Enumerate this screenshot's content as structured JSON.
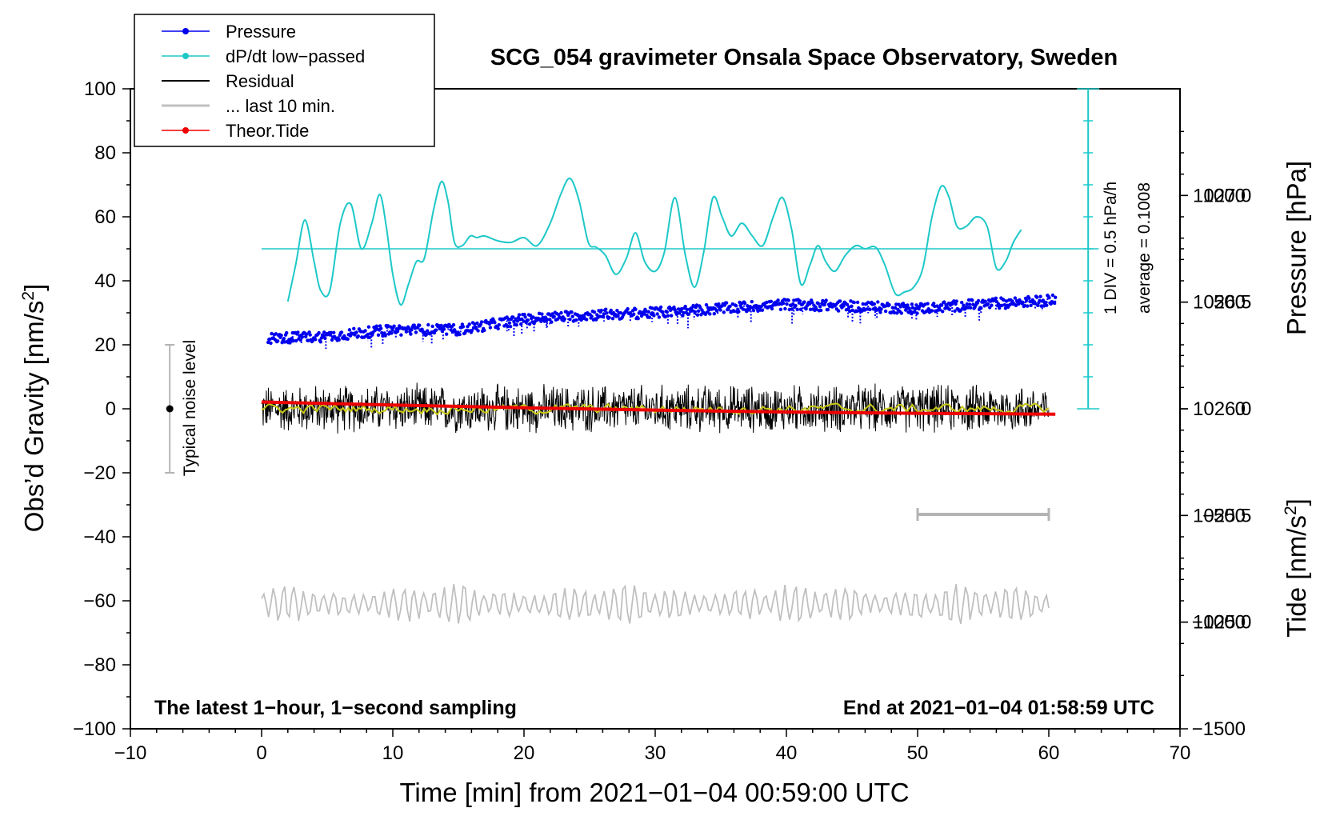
{
  "colors": {
    "pressure": "#0000ee",
    "dpdt": "#1ec8c8",
    "residual": "#000000",
    "last10": "#c0c0c0",
    "tide": "#ee0000",
    "smooth": "#c8c814",
    "noise": "#b4b4b4"
  },
  "chart_data": {
    "type": "line",
    "title": "SCG_054 gravimeter Onsala Space Observatory, Sweden",
    "xlabel": "Time [min] from 2021−01−04 00:59:00 UTC",
    "ylabel_left": "Obs’d Gravity [nm/s",
    "ylabel_left_sup": "2",
    "ylabel_left_end": "]",
    "ylabel_right_pressure": "Pressure [hPa]",
    "ylabel_right_tide": "Tide [nm/s",
    "ylabel_right_tide_sup": "2",
    "ylabel_right_tide_end": "]",
    "xlim": [
      -10,
      70
    ],
    "ylim": [
      -100,
      100
    ],
    "pressure_lim": [
      1024.5,
      1027.5
    ],
    "tide_lim": [
      -1500,
      1500
    ],
    "x_ticks": [
      "−10",
      "0",
      "10",
      "20",
      "30",
      "40",
      "50",
      "60",
      "70"
    ],
    "y_ticks": [
      "−100",
      "−80",
      "−60",
      "−40",
      "−20",
      "0",
      "20",
      "40",
      "60",
      "80",
      "100"
    ],
    "pressure_ticks": [
      "1025.0",
      "1025.5",
      "1026.0",
      "1026.5",
      "1027.0"
    ],
    "pressure_tick_values": [
      1025.0,
      1025.5,
      1026.0,
      1026.5,
      1027.0
    ],
    "tide_ticks": [
      "−1500",
      "−1000",
      "−500",
      "0",
      "500",
      "1000"
    ],
    "tide_tick_values": [
      -1500,
      -1000,
      -500,
      0,
      500,
      1000
    ],
    "legend": [
      {
        "label": "Pressure",
        "key": "pressure",
        "marker": true
      },
      {
        "label": "dP/dt low−passed",
        "key": "dpdt",
        "marker": true
      },
      {
        "label": "Residual",
        "key": "residual",
        "marker": false
      },
      {
        "label": "... last 10 min.",
        "key": "last10",
        "marker": false
      },
      {
        "label": "Theor.Tide",
        "key": "tide",
        "marker": true
      }
    ],
    "series": [
      {
        "name": "Pressure",
        "axis": "pressure",
        "x": [
          0.5,
          5,
          10,
          15,
          20,
          25,
          30,
          35,
          40,
          45,
          50,
          55,
          60.5
        ],
        "values": [
          1026.33,
          1026.34,
          1026.37,
          1026.37,
          1026.42,
          1026.44,
          1026.45,
          1026.47,
          1026.49,
          1026.48,
          1026.47,
          1026.49,
          1026.51
        ]
      },
      {
        "name": "dP/dt low−passed",
        "axis": "gravity",
        "x": [
          2.0,
          2.6,
          3.3,
          4.0,
          4.5,
          5.2,
          6.0,
          6.8,
          7.6,
          8.4,
          9.0,
          9.5,
          10.0,
          10.6,
          11.2,
          11.8,
          12.4,
          13.1,
          13.7,
          14.2,
          14.7,
          15.3,
          15.9,
          16.4,
          17.0,
          18.0,
          19.0,
          20.0,
          21.0,
          22.0,
          22.8,
          23.5,
          24.2,
          24.9,
          25.5,
          26.2,
          27.0,
          27.8,
          28.5,
          29.2,
          30.0,
          30.7,
          31.5,
          32.3,
          33.0,
          33.7,
          34.4,
          35.1,
          35.8,
          36.6,
          37.4,
          38.2,
          39.0,
          39.7,
          40.4,
          41.1,
          41.8,
          42.4,
          43.0,
          43.7,
          44.5,
          45.3,
          46.0,
          46.8,
          47.5,
          48.3,
          49.0,
          49.7,
          50.4,
          51.1,
          51.8,
          52.4,
          53.0,
          53.7,
          54.5,
          55.3,
          56.0,
          56.7,
          57.3,
          57.9
        ],
        "values": [
          33.5,
          45,
          59,
          46,
          37,
          37,
          58,
          64,
          50,
          58,
          67,
          57,
          42,
          32.5,
          39,
          46,
          47,
          62,
          71,
          65,
          52,
          51,
          54,
          53.5,
          54,
          52.5,
          52,
          53.5,
          51,
          58,
          67,
          72,
          65,
          52,
          50.5,
          48,
          42,
          47,
          55,
          46,
          43,
          49,
          66,
          48,
          38,
          49,
          66,
          60,
          54,
          58,
          54,
          51,
          60,
          66,
          56,
          39,
          45,
          51,
          46,
          43,
          48,
          51,
          50,
          50.5,
          45,
          36,
          36.5,
          38,
          44,
          60,
          69.5,
          66,
          57,
          57,
          60,
          57,
          44,
          46,
          52,
          56
        ]
      },
      {
        "name": "Residual",
        "axis": "gravity",
        "x_start": 0,
        "x_end": 60,
        "mean": 0,
        "amplitude": 8.5
      },
      {
        "name": "... last 10 min.",
        "axis": "gravity",
        "x_start": 0,
        "x_end": 60,
        "mean": -61,
        "amplitude": 6.5
      },
      {
        "name": "Theor.Tide",
        "axis": "tide",
        "x": [
          0,
          10,
          20,
          30,
          40,
          50,
          60.5
        ],
        "values": [
          32,
          18,
          5,
          -6,
          -15,
          -21,
          -25
        ]
      }
    ],
    "dpdt_zero_line": 50,
    "noise_bar": {
      "x": -7,
      "center": 0,
      "half": 20,
      "label": "Typical noise level"
    },
    "last10_bar": {
      "x_start": 50,
      "x_end": 60,
      "y": -33
    },
    "dpdt_scale": {
      "label": "1 DIV = 0.5 hPa/h",
      "x": 63,
      "y_from": 0,
      "y_to": 100
    },
    "average_label": "average = 0.1008",
    "bottom_left_note": "The latest 1−hour, 1−second sampling",
    "bottom_right_note": "End at 2021−01−04 01:58:59 UTC"
  }
}
